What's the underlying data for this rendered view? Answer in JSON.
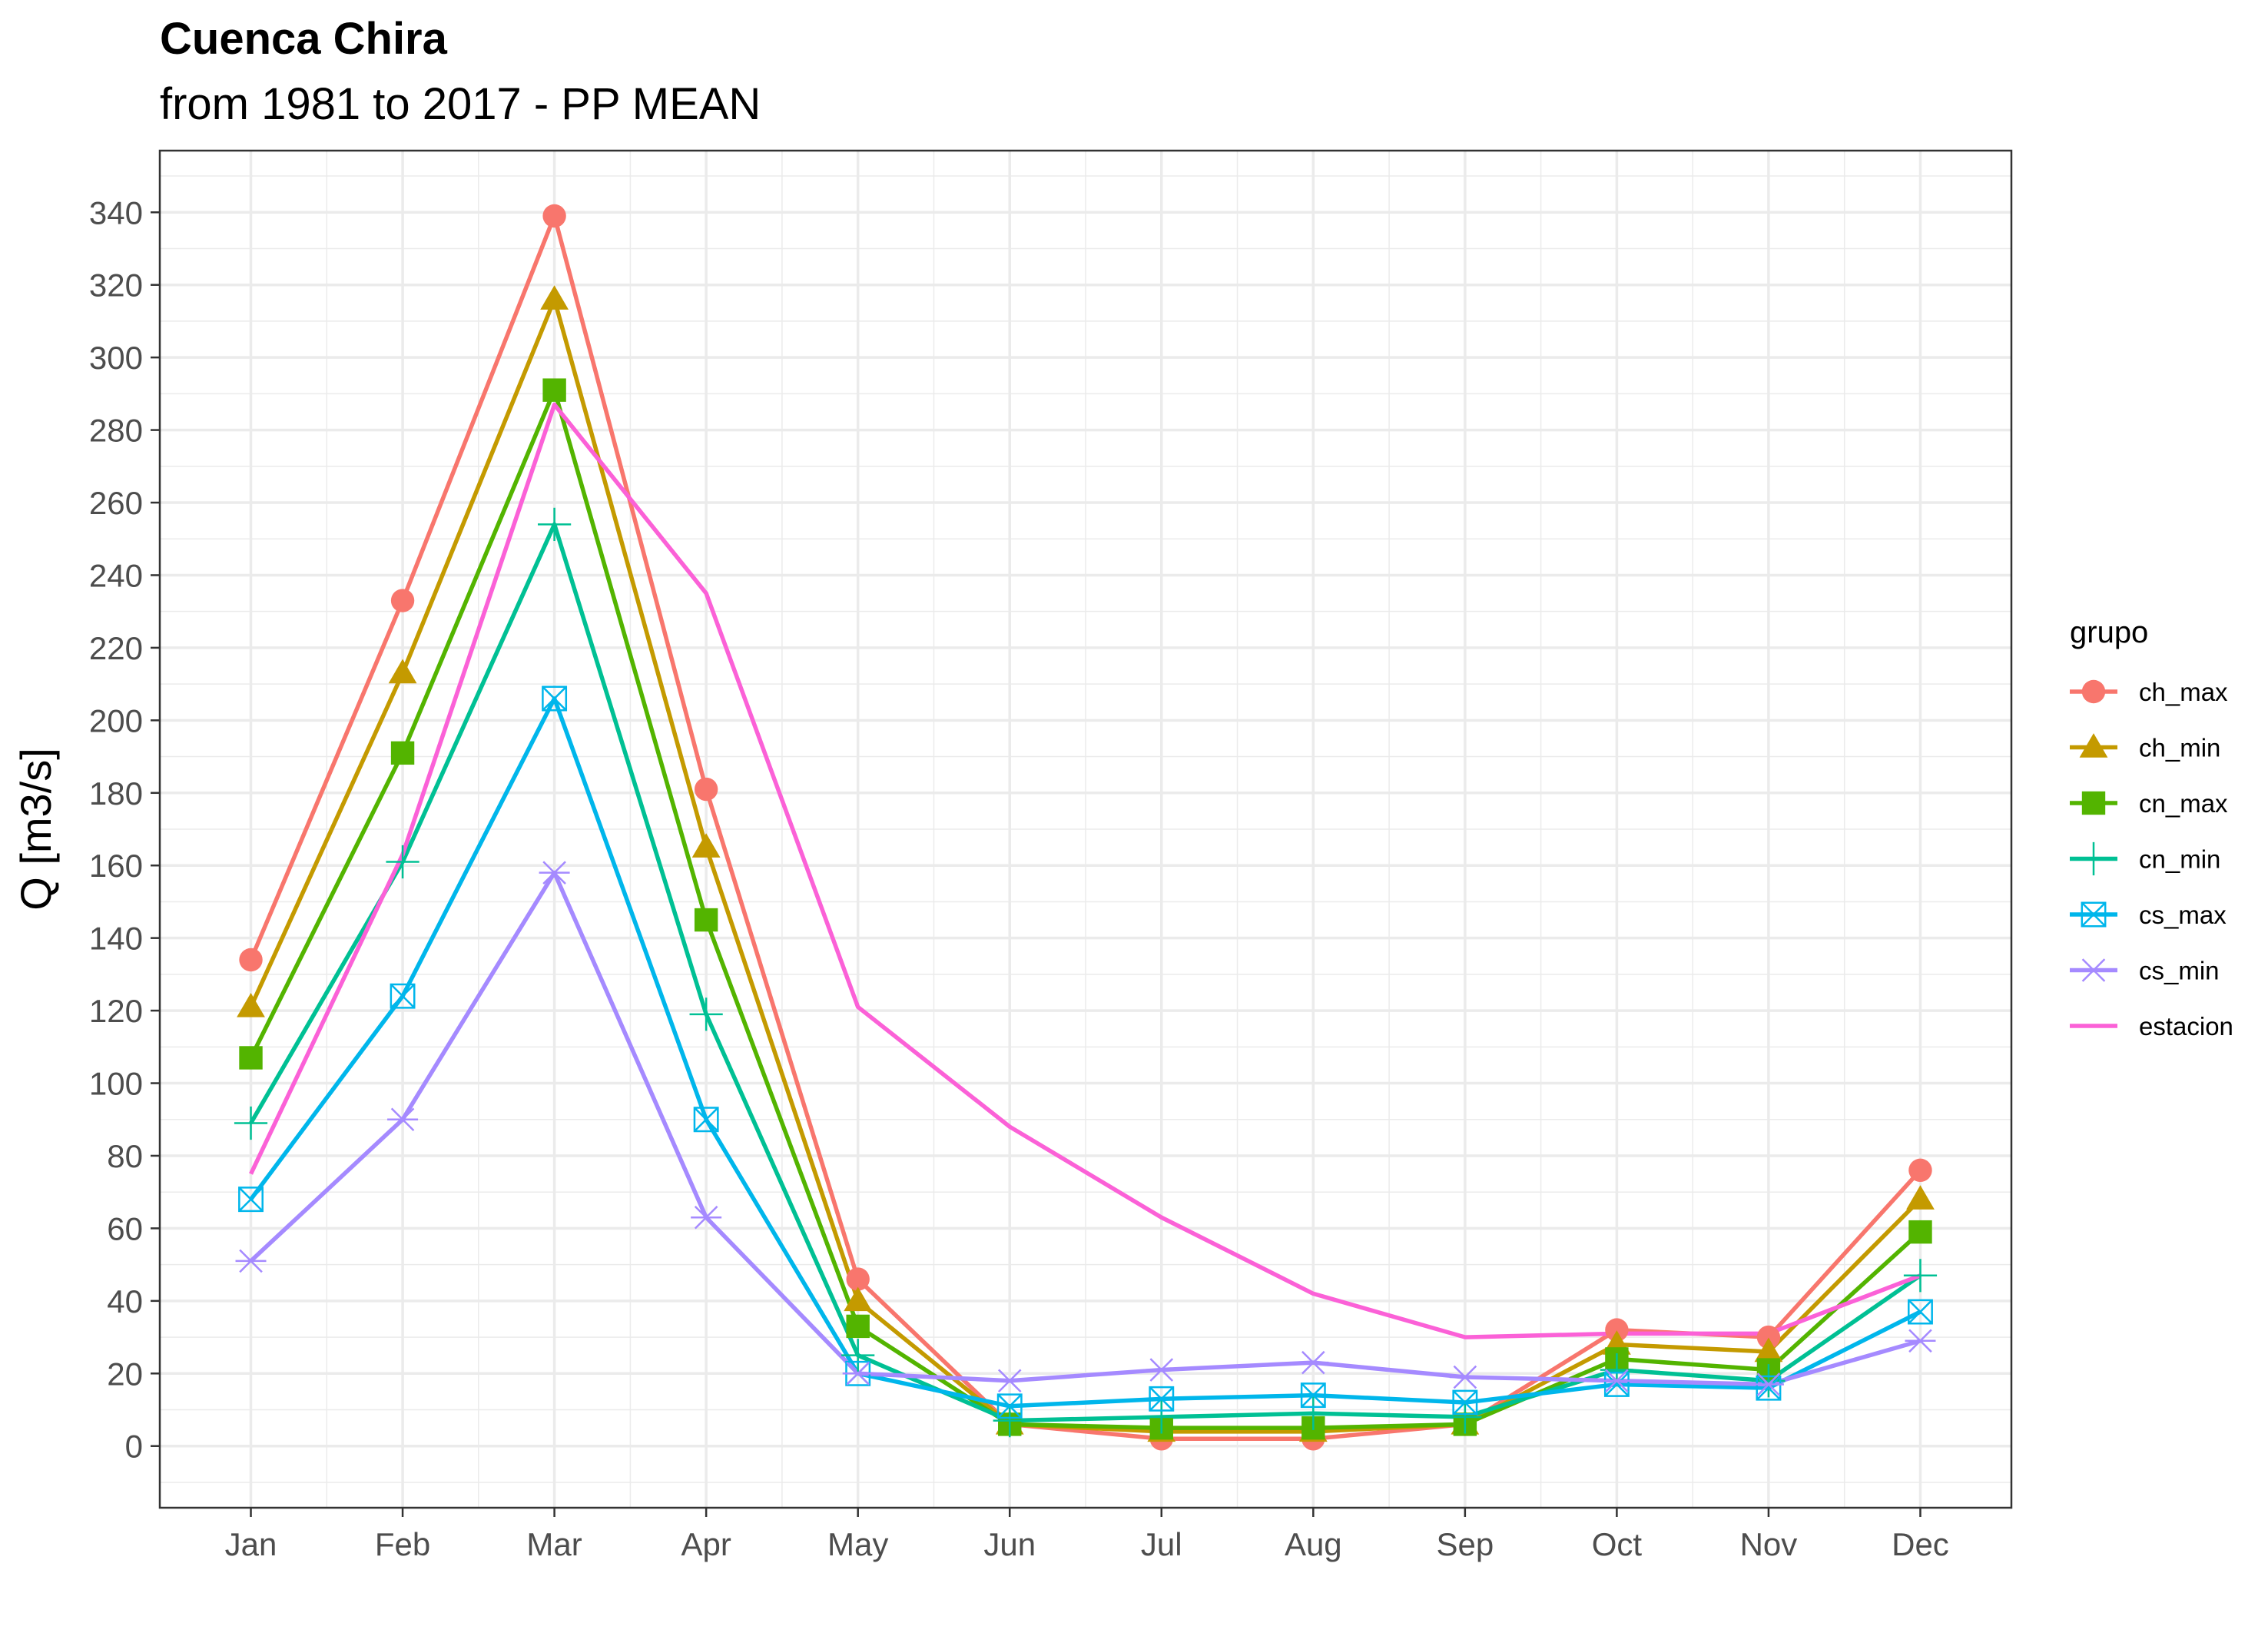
{
  "chart_data": {
    "type": "line",
    "title": "Cuenca Chira",
    "subtitle": "from 1981 to 2017 - PP MEAN",
    "xlabel": "",
    "ylabel": "Q [m3/s]",
    "categories": [
      "Jan",
      "Feb",
      "Mar",
      "Apr",
      "May",
      "Jun",
      "Jul",
      "Aug",
      "Sep",
      "Oct",
      "Nov",
      "Dec"
    ],
    "ylim": [
      -17,
      357
    ],
    "yticks": [
      0,
      20,
      40,
      60,
      80,
      100,
      120,
      140,
      160,
      180,
      200,
      220,
      240,
      260,
      280,
      300,
      320,
      340
    ],
    "ytick_labels": [
      "0",
      "20",
      "40",
      "60",
      "80",
      "100",
      "120",
      "140",
      "160",
      "180",
      "200",
      "220",
      "240",
      "260",
      "280",
      "300",
      "320",
      "340"
    ],
    "grid": true,
    "legend": {
      "title": "grupo",
      "position": "right"
    },
    "series": [
      {
        "name": "ch_max",
        "color": "#F8766D",
        "marker": "circle",
        "values": [
          134,
          233,
          339,
          181,
          46,
          6,
          2,
          2,
          6,
          32,
          30,
          76
        ]
      },
      {
        "name": "ch_min",
        "color": "#C49A00",
        "marker": "triangle",
        "values": [
          121,
          213,
          316,
          165,
          40,
          6,
          4,
          4,
          6,
          28,
          26,
          68
        ]
      },
      {
        "name": "cn_max",
        "color": "#53B400",
        "marker": "square",
        "values": [
          107,
          191,
          291,
          145,
          33,
          6,
          5,
          5,
          6,
          24,
          21,
          59
        ]
      },
      {
        "name": "cn_min",
        "color": "#00C094",
        "marker": "plus",
        "values": [
          89,
          161,
          254,
          119,
          25,
          7,
          8,
          9,
          8,
          21,
          18,
          47
        ]
      },
      {
        "name": "cs_max",
        "color": "#00B6EB",
        "marker": "square-x",
        "values": [
          68,
          124,
          206,
          90,
          20,
          11,
          13,
          14,
          12,
          17,
          16,
          37
        ]
      },
      {
        "name": "cs_min",
        "color": "#A58AFF",
        "marker": "asterisk",
        "values": [
          51,
          90,
          158,
          63,
          20,
          18,
          21,
          23,
          19,
          18,
          17,
          29
        ]
      },
      {
        "name": "estacion",
        "color": "#FB61D7",
        "marker": "none",
        "values": [
          75,
          163,
          287,
          235,
          121,
          88,
          63,
          42,
          30,
          31,
          31,
          47
        ]
      }
    ]
  }
}
